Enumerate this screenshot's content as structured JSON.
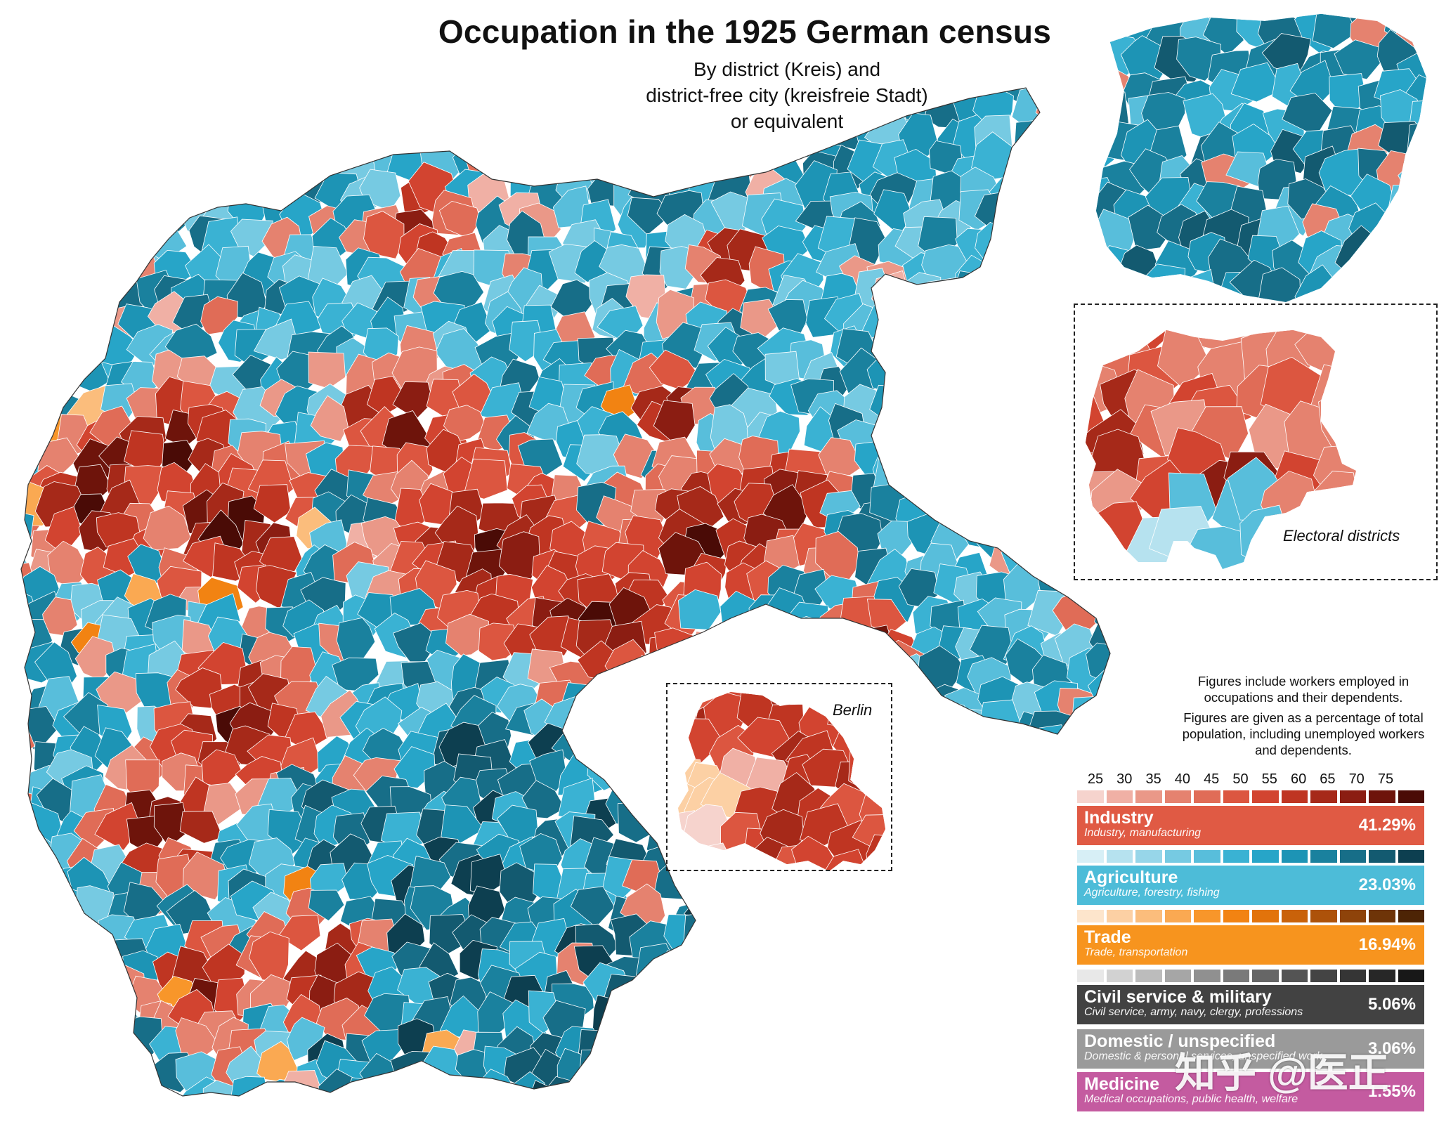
{
  "title": "Occupation in the 1925 German census",
  "subtitle_lines": [
    "By district (Kreis) and",
    "district-free city (kreisfreie Stadt)",
    "or equivalent"
  ],
  "insets": {
    "berlin_label": "Berlin",
    "electoral_label": "Electoral districts"
  },
  "notes": [
    "Figures include workers employed in occupations and their dependents.",
    "Figures are given as a percentage of total population, including unemployed workers and dependents."
  ],
  "scale_ticks": [
    "25",
    "30",
    "35",
    "40",
    "45",
    "50",
    "55",
    "60",
    "65",
    "70",
    "75"
  ],
  "categories": [
    {
      "name": "Industry",
      "description": "Industry, manufacturing",
      "percent": "41.29%",
      "color": "#e05a44",
      "ramp": [
        "#f6d3cd",
        "#f0b0a5",
        "#ea9888",
        "#e5826f",
        "#e06c57",
        "#dc5640",
        "#d24430",
        "#bf3522",
        "#a62919",
        "#8b1d12",
        "#6e140b",
        "#4a0b06"
      ]
    },
    {
      "name": "Agriculture",
      "description": "Agriculture, forestry, fishing",
      "percent": "23.03%",
      "color": "#4dbcd8",
      "ramp": [
        "#d7eff6",
        "#b6e2ef",
        "#97d6e9",
        "#76cae2",
        "#58bedb",
        "#3ab2d3",
        "#27a5c8",
        "#1d94b5",
        "#1a819e",
        "#176e88",
        "#135a70",
        "#0d3f50"
      ]
    },
    {
      "name": "Trade",
      "description": "Trade, transportation",
      "percent": "16.94%",
      "color": "#f7941e",
      "ramp": [
        "#fde5cc",
        "#fcd0a4",
        "#fbbd7c",
        "#faa952",
        "#f8962a",
        "#f28312",
        "#e2730b",
        "#c9620a",
        "#ad520a",
        "#8e430a",
        "#6e3408",
        "#4d2405"
      ]
    },
    {
      "name": "Civil service & military",
      "description": "Civil service, army, navy, clergy, professions",
      "percent": "5.06%",
      "color": "#424242",
      "ramp": [
        "#e8e8e8",
        "#d2d2d2",
        "#bcbcbc",
        "#a6a6a6",
        "#909090",
        "#7a7a7a",
        "#666666",
        "#545454",
        "#444444",
        "#353535",
        "#272727",
        "#181818"
      ]
    },
    {
      "name": "Domestic / unspecified",
      "description": "Domestic & personal services, unspecified work",
      "percent": "3.06%",
      "color": "#9a9a9a",
      "ramp": []
    },
    {
      "name": "Medicine",
      "description": "Medical occupations, public health, welfare",
      "percent": "1.55%",
      "color": "#c45ba0",
      "ramp": []
    }
  ],
  "watermark": "知乎 @医正"
}
